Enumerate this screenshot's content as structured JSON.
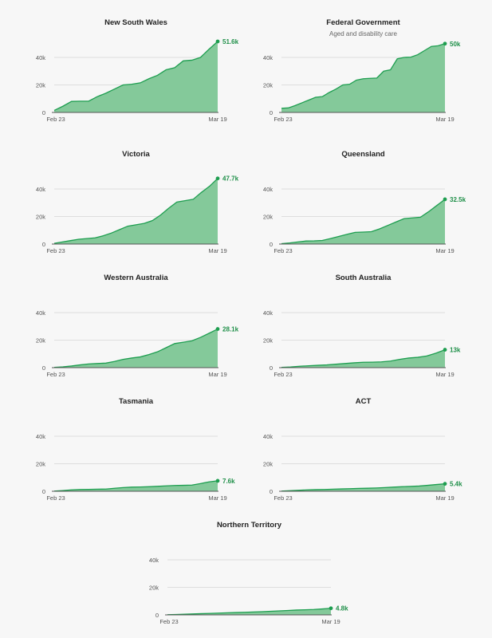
{
  "colors": {
    "area": "#84c99a",
    "line": "#1e9e50",
    "label": "#1e8f48"
  },
  "chart_data": [
    {
      "type": "area",
      "title": "New South Wales",
      "subtitle": "",
      "x_labels": [
        "Feb 23",
        "Mar 19"
      ],
      "y_ticks": [
        0,
        20000,
        40000
      ],
      "y_tick_labels": [
        "0",
        "20k",
        "40k"
      ],
      "ylim": [
        0,
        52000
      ],
      "end_label": "51.6k",
      "values": [
        1500,
        4500,
        8000,
        8200,
        8200,
        11500,
        14000,
        17000,
        20000,
        20500,
        21500,
        24500,
        27000,
        31000,
        32500,
        37500,
        38000,
        40000,
        46000,
        51600
      ]
    },
    {
      "type": "area",
      "title": "Federal Government",
      "subtitle": "Aged and disability care",
      "x_labels": [
        "Feb 23",
        "Mar 19"
      ],
      "y_ticks": [
        0,
        20000,
        40000
      ],
      "y_tick_labels": [
        "0",
        "20k",
        "40k"
      ],
      "ylim": [
        0,
        52000
      ],
      "end_label": "50k",
      "values": [
        3000,
        3300,
        5000,
        7000,
        9000,
        11000,
        11500,
        14500,
        17000,
        20000,
        20500,
        23500,
        24500,
        24800,
        25000,
        30000,
        31000,
        39000,
        40000,
        40200,
        42000,
        45000,
        48000,
        48500,
        50000
      ]
    },
    {
      "type": "area",
      "title": "Victoria",
      "subtitle": "",
      "x_labels": [
        "Feb 23",
        "Mar 19"
      ],
      "y_ticks": [
        0,
        20000,
        40000
      ],
      "y_tick_labels": [
        "0",
        "20k",
        "40k"
      ],
      "ylim": [
        0,
        52000
      ],
      "end_label": "47.7k",
      "values": [
        500,
        1500,
        2500,
        3500,
        4000,
        4500,
        6000,
        8000,
        10500,
        13000,
        14000,
        15000,
        17000,
        21000,
        26000,
        30500,
        31500,
        32500,
        37500,
        42000,
        47700
      ]
    },
    {
      "type": "area",
      "title": "Queensland",
      "subtitle": "",
      "x_labels": [
        "Feb 23",
        "Mar 19"
      ],
      "y_ticks": [
        0,
        20000,
        40000
      ],
      "y_tick_labels": [
        "0",
        "20k",
        "40k"
      ],
      "ylim": [
        0,
        52000
      ],
      "end_label": "32.5k",
      "values": [
        300,
        800,
        1500,
        2200,
        2300,
        2600,
        4000,
        5500,
        7000,
        8500,
        8700,
        9000,
        11000,
        13500,
        16000,
        18500,
        19000,
        19500,
        23500,
        28000,
        32500
      ]
    },
    {
      "type": "area",
      "title": "Western Australia",
      "subtitle": "",
      "x_labels": [
        "Feb 23",
        "Mar 19"
      ],
      "y_ticks": [
        0,
        20000,
        40000
      ],
      "y_tick_labels": [
        "0",
        "20k",
        "40k"
      ],
      "ylim": [
        0,
        52000
      ],
      "end_label": "28.1k",
      "values": [
        200,
        600,
        1200,
        2000,
        2700,
        3000,
        3300,
        4500,
        6000,
        7000,
        7800,
        9500,
        11500,
        14500,
        17500,
        18500,
        19500,
        22000,
        25000,
        28100
      ]
    },
    {
      "type": "area",
      "title": "South Australia",
      "subtitle": "",
      "x_labels": [
        "Feb 23",
        "Mar 19"
      ],
      "y_ticks": [
        0,
        20000,
        40000
      ],
      "y_tick_labels": [
        "0",
        "20k",
        "40k"
      ],
      "ylim": [
        0,
        52000
      ],
      "end_label": "13k",
      "values": [
        200,
        500,
        1000,
        1400,
        1700,
        2000,
        2500,
        3000,
        3500,
        3900,
        4000,
        4200,
        4800,
        6000,
        7000,
        7500,
        8500,
        10500,
        13000
      ]
    },
    {
      "type": "area",
      "title": "Tasmania",
      "subtitle": "",
      "x_labels": [
        "Feb 23",
        "Mar 19"
      ],
      "y_ticks": [
        0,
        20000,
        40000
      ],
      "y_tick_labels": [
        "0",
        "20k",
        "40k"
      ],
      "ylim": [
        0,
        52000
      ],
      "end_label": "7.6k",
      "values": [
        100,
        500,
        1000,
        1300,
        1400,
        1500,
        1600,
        2200,
        2700,
        3000,
        3100,
        3300,
        3600,
        3900,
        4200,
        4300,
        4500,
        5600,
        6800,
        7600
      ]
    },
    {
      "type": "area",
      "title": "ACT",
      "subtitle": "",
      "x_labels": [
        "Feb 23",
        "Mar 19"
      ],
      "y_ticks": [
        0,
        20000,
        40000
      ],
      "y_tick_labels": [
        "0",
        "20k",
        "40k"
      ],
      "ylim": [
        0,
        52000
      ],
      "end_label": "5.4k",
      "values": [
        100,
        400,
        700,
        1000,
        1200,
        1300,
        1500,
        1700,
        1900,
        2100,
        2200,
        2400,
        2700,
        3000,
        3300,
        3500,
        3800,
        4300,
        4900,
        5400
      ]
    },
    {
      "type": "area",
      "title": "Northern Territory",
      "subtitle": "",
      "x_labels": [
        "Feb 23",
        "Mar 19"
      ],
      "y_ticks": [
        0,
        20000,
        40000
      ],
      "y_tick_labels": [
        "0",
        "20k",
        "40k"
      ],
      "ylim": [
        0,
        52000
      ],
      "end_label": "4.8k",
      "values": [
        100,
        300,
        500,
        700,
        900,
        1100,
        1300,
        1500,
        1700,
        1900,
        2100,
        2300,
        2600,
        2900,
        3200,
        3500,
        3700,
        3900,
        4300,
        4800
      ]
    }
  ]
}
